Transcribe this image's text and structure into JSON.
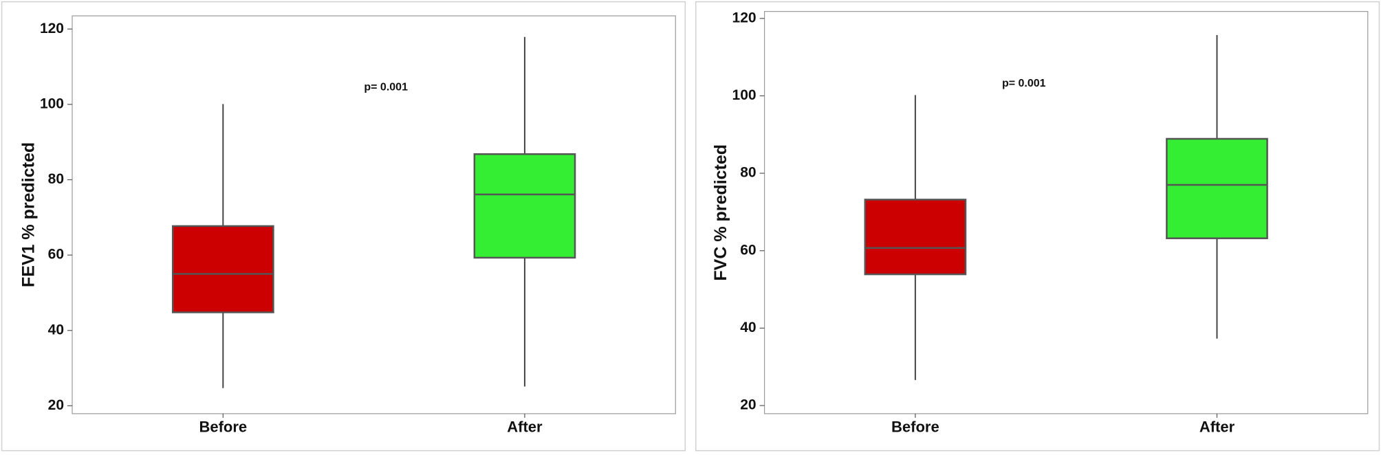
{
  "chart_data": [
    {
      "type": "box",
      "y_label": "FEV1 % predicted",
      "annotation": "p= 0.001",
      "categories": [
        "Before",
        "After"
      ],
      "boxes": [
        {
          "min": 24.7,
          "q1": 44.8,
          "median": 55.0,
          "q3": 67.7,
          "max": 100.1,
          "color": "#cc0000"
        },
        {
          "min": 25.1,
          "q1": 59.3,
          "median": 76.1,
          "q3": 86.8,
          "max": 117.9,
          "color": "#33ee33"
        }
      ],
      "ylim": [
        17.9,
        123.5
      ],
      "yticks": [
        20,
        40,
        60,
        80,
        100,
        120
      ]
    },
    {
      "type": "box",
      "y_label": "FVC % predicted",
      "annotation": "p= 0.001",
      "categories": [
        "Before",
        "After"
      ],
      "boxes": [
        {
          "min": 26.6,
          "q1": 53.9,
          "median": 60.7,
          "q3": 73.2,
          "max": 100.2,
          "color": "#cc0000"
        },
        {
          "min": 37.3,
          "q1": 63.2,
          "median": 77.0,
          "q3": 88.9,
          "max": 115.7,
          "color": "#33ee33"
        }
      ],
      "ylim": [
        17.9,
        121.8
      ],
      "yticks": [
        20,
        40,
        60,
        80,
        100,
        120
      ]
    }
  ]
}
